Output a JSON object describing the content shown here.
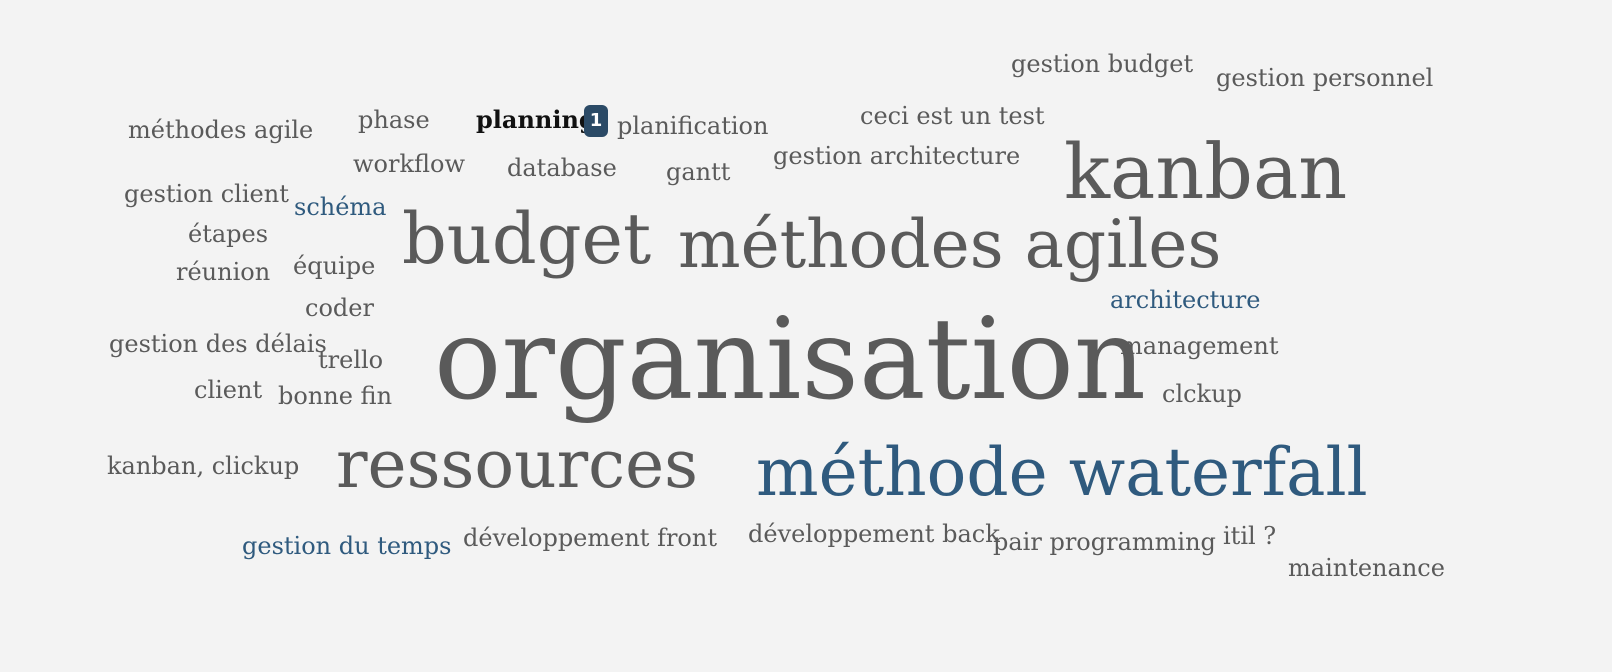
{
  "words": {
    "gestion_budget": "gestion budget",
    "gestion_personnel": "gestion personnel",
    "methodes_agile": "méthodes agile",
    "phase": "phase",
    "planning": "planning",
    "planning_count": "1",
    "planification": "planification",
    "ceci_est_un_test": "ceci est un test",
    "workflow": "workflow",
    "database": "database",
    "gantt": "gantt",
    "gestion_architecture": "gestion architecture",
    "kanban": "kanban",
    "gestion_client": "gestion client",
    "schema": "schéma",
    "etapes": "étapes",
    "budget": "budget",
    "methodes_agiles": "méthodes agiles",
    "reunion": "réunion",
    "equipe": "équipe",
    "coder": "coder",
    "architecture": "architecture",
    "gestion_des_delais": "gestion des délais",
    "trello": "trello",
    "organisation": "organisation",
    "management": "management",
    "client": "client",
    "bonne_fin": "bonne fin",
    "clckup": "clckup",
    "kanban_clickup": "kanban, clickup",
    "ressources": "ressources",
    "methode_waterfall": "méthode waterfall",
    "gestion_du_temps": "gestion du temps",
    "developpement_front": "développement front",
    "developpement_back": "développement back",
    "pair_programming": "pair programming",
    "itil": "itil ?",
    "maintenance": "maintenance"
  },
  "colors": {
    "default_word": "#5a5a5a",
    "highlight_word": "#2f5a7e",
    "active_word": "#111111",
    "badge_bg": "#2b4a66",
    "background": "#f3f3f3"
  }
}
